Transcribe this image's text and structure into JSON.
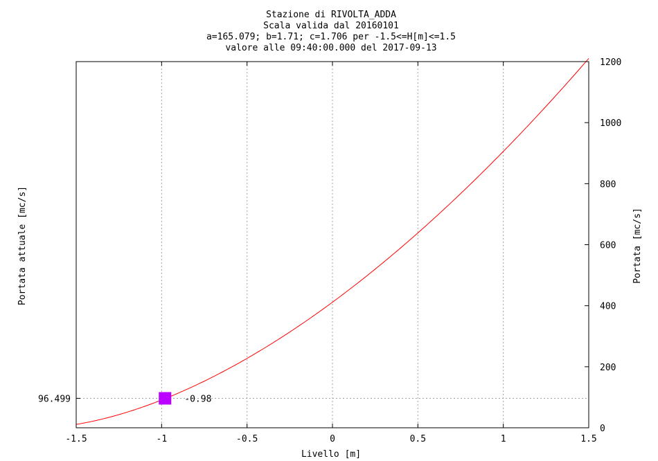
{
  "chart_data": {
    "type": "line",
    "title_lines": [
      "Stazione di RIVOLTA_ADDA",
      "Scala valida dal 20160101",
      "a=165.079; b=1.71; c=1.706 per -1.5<=H[m]<=1.5",
      "valore alle 09:40:00.000 del 2017-09-13"
    ],
    "xlabel": "Livello [m]",
    "ylabel_left": "Portata attuale [mc/s]",
    "ylabel_right": "Portata [mc/s]",
    "xlim": [
      -1.5,
      1.5
    ],
    "ylim": [
      0,
      1200
    ],
    "x_ticks": [
      -1.5,
      -1,
      -0.5,
      0,
      0.5,
      1,
      1.5
    ],
    "x_tick_labels": [
      "-1.5",
      "-1",
      "-0.5",
      "0",
      "0.5",
      "1",
      "1.5"
    ],
    "y_ticks": [
      0,
      200,
      400,
      600,
      800,
      1000,
      1200
    ],
    "y_tick_labels": [
      "0",
      "200",
      "400",
      "600",
      "800",
      "1000",
      "1200"
    ],
    "grid": true,
    "curve": {
      "color": "#ff0000",
      "a": 165.079,
      "b": 1.71,
      "c": 1.706
    },
    "current_point": {
      "x": -0.98,
      "y": 96.499,
      "x_label": "-0.98",
      "y_label": "96.499",
      "color": "#bb00ff"
    }
  }
}
